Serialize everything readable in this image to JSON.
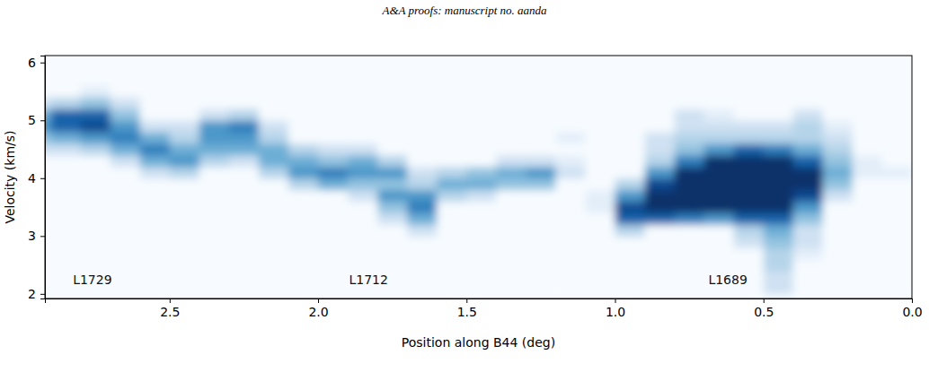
{
  "page_header": {
    "text": "A&A proofs: manuscript no. aanda"
  },
  "chart_data": {
    "type": "heatmap",
    "x_label": "Position along B44 (deg)",
    "y_label": "Velocity (km/s)",
    "xlim": [
      2.92,
      0.0
    ],
    "ylim": [
      1.92,
      6.12
    ],
    "xticks": [
      2.5,
      {
        "value": 2.0,
        "label": "2.0"
      },
      1.5,
      {
        "value": 1.0,
        "label": "1.0"
      },
      0.5,
      {
        "value": 0.0,
        "label": "0.0"
      }
    ],
    "yticks": [
      2,
      3,
      4,
      5,
      6
    ],
    "zlim": [
      0,
      10
    ],
    "color": "blues",
    "annotations": [
      {
        "text": "L1729",
        "x": 2.76,
        "y": 2.17
      },
      {
        "text": "L1712",
        "x": 1.83,
        "y": 2.17
      },
      {
        "text": "L1689",
        "x": 0.62,
        "y": 2.17
      }
    ],
    "x_edges": [
      3.0,
      2.9,
      2.8,
      2.7,
      2.6,
      2.5,
      2.4,
      2.3,
      2.2,
      2.1,
      2.0,
      1.9,
      1.8,
      1.7,
      1.6,
      1.5,
      1.4,
      1.3,
      1.2,
      1.1,
      1.0,
      0.9,
      0.8,
      0.7,
      0.6,
      0.5,
      0.4,
      0.3,
      0.2,
      0.1,
      0.0
    ],
    "y_edges": [
      2.0,
      2.2,
      2.4,
      2.6,
      2.8,
      3.0,
      3.2,
      3.4,
      3.6,
      3.8,
      4.0,
      4.2,
      4.4,
      4.6,
      4.8,
      5.0,
      5.2,
      5.4,
      5.6,
      5.8,
      6.0
    ],
    "z": [
      [
        0,
        0,
        0,
        0,
        0,
        0,
        0,
        0,
        0,
        0,
        0,
        0,
        2,
        4,
        6,
        5,
        2,
        0,
        0,
        0
      ],
      [
        0,
        0,
        0,
        0,
        0,
        0,
        0,
        0,
        0,
        0,
        0,
        0,
        2,
        5,
        8,
        8,
        3,
        0,
        0,
        0
      ],
      [
        0,
        0,
        0,
        0,
        0,
        0,
        0,
        0,
        0,
        0,
        0,
        0,
        3,
        6,
        9,
        8,
        4,
        1,
        0,
        0
      ],
      [
        0,
        0,
        0,
        0,
        0,
        0,
        0,
        0,
        0,
        0,
        0,
        2,
        5,
        7,
        6,
        4,
        2,
        0,
        0,
        0
      ],
      [
        0,
        0,
        0,
        0,
        0,
        0,
        0,
        0,
        0,
        0,
        2,
        5,
        7,
        5,
        2,
        0,
        0,
        0,
        0,
        0
      ],
      [
        0,
        0,
        0,
        0,
        0,
        0,
        0,
        0,
        0,
        0,
        3,
        6,
        5,
        3,
        2,
        0,
        0,
        0,
        0,
        0
      ],
      [
        0,
        0,
        0,
        0,
        0,
        0,
        0,
        0,
        0,
        0,
        0,
        3,
        5,
        6,
        6,
        2,
        0,
        0,
        0,
        0
      ],
      [
        0,
        0,
        0,
        0,
        0,
        0,
        0,
        0,
        0,
        0,
        0,
        2,
        5,
        6,
        7,
        3,
        0,
        0,
        0,
        0
      ],
      [
        0,
        0,
        0,
        0,
        0,
        0,
        0,
        0,
        0,
        0,
        3,
        5,
        5,
        3,
        2,
        0,
        0,
        0,
        0,
        0
      ],
      [
        0,
        0,
        0,
        0,
        0,
        0,
        0,
        0,
        0,
        3,
        6,
        5,
        3,
        0,
        0,
        0,
        0,
        0,
        0,
        0
      ],
      [
        0,
        0,
        0,
        0,
        0,
        0,
        0,
        0,
        0,
        5,
        7,
        4,
        2,
        0,
        0,
        0,
        0,
        0,
        0,
        0
      ],
      [
        0,
        0,
        0,
        0,
        0,
        0,
        0,
        0,
        2,
        4,
        6,
        5,
        2,
        0,
        0,
        0,
        0,
        0,
        0,
        0
      ],
      [
        0,
        0,
        0,
        0,
        0,
        0,
        2,
        4,
        6,
        4,
        6,
        3,
        0,
        0,
        0,
        0,
        0,
        0,
        0,
        0
      ],
      [
        0,
        0,
        0,
        0,
        0,
        2,
        5,
        7,
        6,
        3,
        2,
        0,
        0,
        0,
        0,
        0,
        0,
        0,
        0,
        0
      ],
      [
        0,
        0,
        0,
        0,
        0,
        0,
        0,
        0,
        3,
        5,
        3,
        0,
        0,
        0,
        0,
        0,
        0,
        0,
        0,
        0
      ],
      [
        0,
        0,
        0,
        0,
        0,
        0,
        0,
        0,
        2,
        5,
        4,
        0,
        0,
        0,
        0,
        0,
        0,
        0,
        0,
        0
      ],
      [
        0,
        0,
        0,
        0,
        0,
        0,
        0,
        0,
        0,
        4,
        5,
        2,
        0,
        0,
        0,
        0,
        0,
        0,
        0,
        0
      ],
      [
        0,
        0,
        0,
        0,
        0,
        0,
        0,
        0,
        0,
        4,
        6,
        2,
        0,
        0,
        0,
        0,
        0,
        0,
        0,
        0
      ],
      [
        0,
        0,
        0,
        0,
        0,
        0,
        0,
        0,
        0,
        0,
        2,
        1,
        0,
        1,
        0,
        0,
        0,
        0,
        0,
        0
      ],
      [
        0,
        0,
        0,
        0,
        0,
        0,
        0,
        1,
        1,
        0,
        0,
        0,
        0,
        0,
        0,
        0,
        0,
        0,
        0,
        0
      ],
      [
        0,
        0,
        0,
        0,
        0,
        3,
        8,
        9,
        6,
        3,
        0,
        0,
        0,
        0,
        0,
        0,
        0,
        0,
        0,
        0
      ],
      [
        0,
        0,
        0,
        0,
        0,
        0,
        8,
        10,
        10,
        9,
        6,
        3,
        2,
        2,
        0,
        0,
        0,
        0,
        0,
        0
      ],
      [
        0,
        0,
        0,
        0,
        0,
        0,
        7,
        10,
        10,
        10,
        10,
        7,
        4,
        3,
        2,
        2,
        0,
        0,
        0,
        0
      ],
      [
        0,
        0,
        0,
        0,
        0,
        0,
        6,
        10,
        10,
        10,
        10,
        10,
        6,
        3,
        2,
        1,
        0,
        0,
        0,
        0
      ],
      [
        0,
        0,
        0,
        0,
        2,
        3,
        8,
        10,
        10,
        10,
        10,
        10,
        8,
        3,
        2,
        0,
        0,
        0,
        0,
        0
      ],
      [
        2,
        2,
        3,
        3,
        4,
        5,
        8,
        10,
        10,
        10,
        10,
        10,
        7,
        3,
        2,
        0,
        0,
        0,
        0,
        0
      ],
      [
        0,
        0,
        0,
        1,
        2,
        2,
        4,
        6,
        9,
        10,
        10,
        8,
        5,
        3,
        3,
        2,
        0,
        0,
        0,
        0
      ],
      [
        0,
        0,
        0,
        0,
        0,
        0,
        0,
        0,
        2,
        4,
        5,
        4,
        3,
        2,
        1,
        0,
        0,
        0,
        0,
        0
      ],
      [
        0,
        0,
        0,
        0,
        0,
        0,
        0,
        0,
        0,
        0,
        1,
        1,
        0,
        0,
        0,
        0,
        0,
        0,
        0,
        0
      ],
      [
        0,
        0,
        0,
        0,
        0,
        0,
        0,
        0,
        0,
        0,
        1,
        0,
        0,
        0,
        0,
        0,
        0,
        0,
        0,
        0
      ]
    ]
  }
}
